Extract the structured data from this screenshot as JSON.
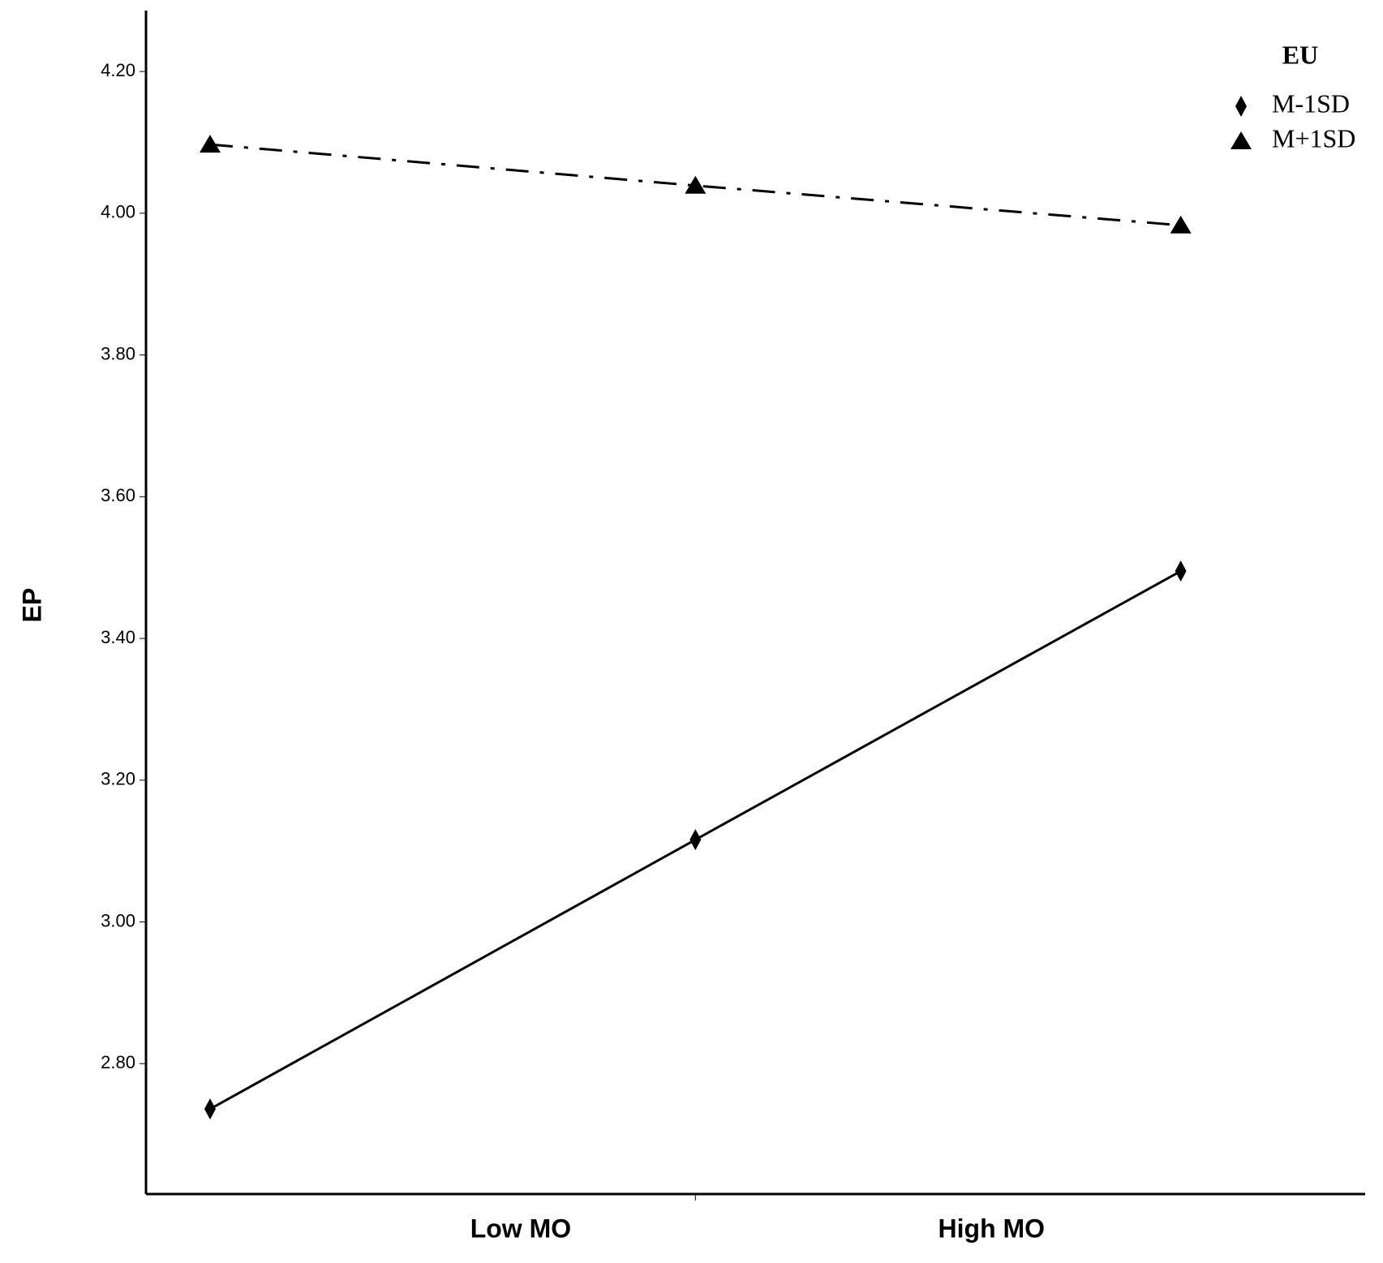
{
  "chart_data": {
    "type": "line",
    "ylabel": "EP",
    "x": [
      1,
      2,
      3
    ],
    "xlim": [
      0.868,
      3.38
    ],
    "xticks": [
      {
        "value": 1.64,
        "label": "Low MO"
      },
      {
        "value": 2,
        "label": null
      },
      {
        "value": 2.61,
        "label": "High MO"
      }
    ],
    "ylim": [
      2.616,
      4.286
    ],
    "yticks": [
      {
        "value": 2.8,
        "label": "2.80"
      },
      {
        "value": 3.0,
        "label": "3.00"
      },
      {
        "value": 3.2,
        "label": "3.20"
      },
      {
        "value": 3.4,
        "label": "3.40"
      },
      {
        "value": 3.6,
        "label": "3.60"
      },
      {
        "value": 3.8,
        "label": "3.80"
      },
      {
        "value": 4.0,
        "label": "4.00"
      },
      {
        "value": 4.2,
        "label": "4.20"
      }
    ],
    "legend_title": "EU",
    "legend": "upper right",
    "series": [
      {
        "name": "M-1SD",
        "color": "#000000",
        "line_style": "solid",
        "marker": "diamond",
        "values": [
          2.736,
          3.116,
          3.495
        ]
      },
      {
        "name": "M+1SD",
        "color": "#000000",
        "line_style": "dashdot",
        "marker": "triangle",
        "values": [
          4.097,
          4.039,
          3.983
        ]
      }
    ]
  }
}
